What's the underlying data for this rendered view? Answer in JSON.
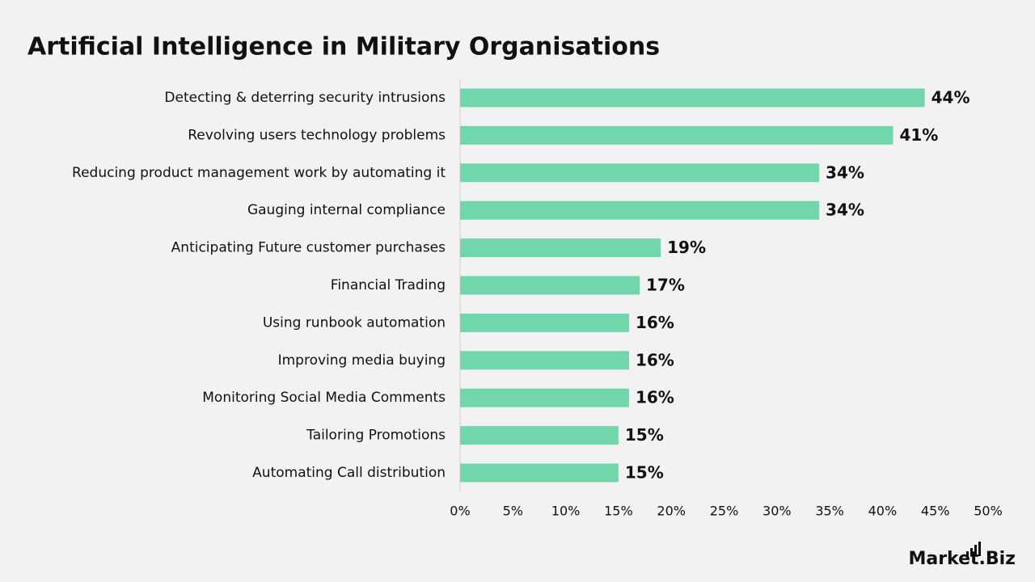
{
  "chart_data": {
    "type": "bar",
    "orientation": "horizontal",
    "title": "Artificial Intelligence in Military Organisations",
    "categories": [
      "Detecting & deterring security intrusions",
      "Revolving users technology problems",
      "Reducing product management work by automating it",
      "Gauging internal compliance",
      "Anticipating Future customer purchases",
      "Financial Trading",
      "Using runbook automation",
      "Improving media buying",
      "Monitoring Social Media Comments",
      "Tailoring Promotions",
      "Automating Call distribution"
    ],
    "values": [
      44,
      41,
      34,
      34,
      19,
      17,
      16,
      16,
      16,
      15,
      15
    ],
    "value_labels": [
      "44%",
      "41%",
      "34%",
      "34%",
      "19%",
      "17%",
      "16%",
      "16%",
      "16%",
      "15%",
      "15%"
    ],
    "color": "#72d6ad",
    "xlim": [
      0,
      50
    ],
    "xticks": [
      {
        "value": 0,
        "label": "0%"
      },
      {
        "value": 5,
        "label": "5%"
      },
      {
        "value": 10,
        "label": "10%"
      },
      {
        "value": 15,
        "label": "15%"
      },
      {
        "value": 20,
        "label": "20%"
      },
      {
        "value": 25,
        "label": "25%"
      },
      {
        "value": 30,
        "label": "30%"
      },
      {
        "value": 35,
        "label": "35%"
      },
      {
        "value": 40,
        "label": "40%"
      },
      {
        "value": 45,
        "label": "45%"
      },
      {
        "value": 50,
        "label": "50%"
      }
    ],
    "grid": false
  },
  "logo": "Market.Biz"
}
